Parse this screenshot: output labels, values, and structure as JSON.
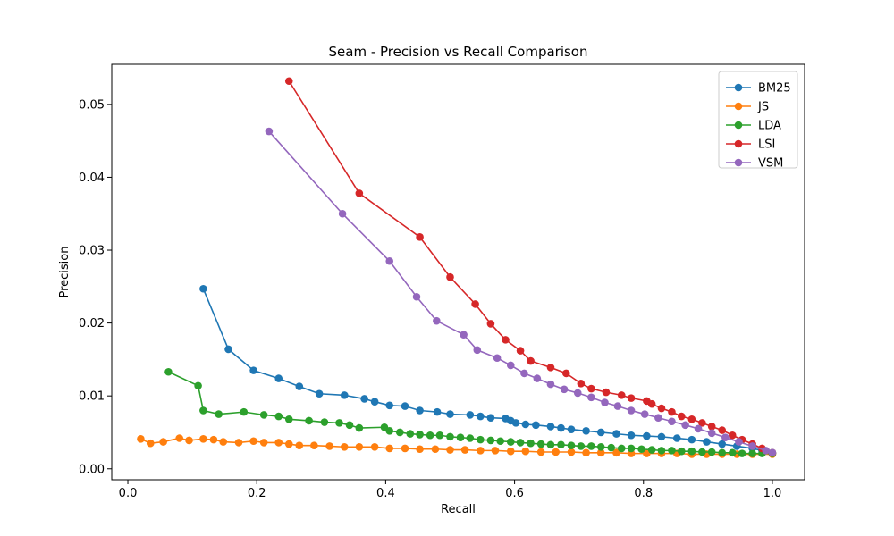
{
  "chart_data": {
    "type": "line",
    "title": "Seam - Precision vs Recall Comparison",
    "xlabel": "Recall",
    "ylabel": "Precision",
    "xlim": [
      -0.025,
      1.05
    ],
    "ylim": [
      -0.0015,
      0.0555
    ],
    "x_ticks": [
      0.0,
      0.2,
      0.4,
      0.6,
      0.8,
      1.0
    ],
    "x_tick_labels": [
      "0.0",
      "0.2",
      "0.4",
      "0.6",
      "0.8",
      "1.0"
    ],
    "y_ticks": [
      0.0,
      0.01,
      0.02,
      0.03,
      0.04,
      0.05
    ],
    "y_tick_labels": [
      "0.00",
      "0.01",
      "0.02",
      "0.03",
      "0.04",
      "0.05"
    ],
    "grid": false,
    "legend_position": "top-right",
    "series": [
      {
        "name": "BM25",
        "color": "#1f77b4",
        "points": [
          [
            0.117,
            0.0247
          ],
          [
            0.156,
            0.0164
          ],
          [
            0.195,
            0.0135
          ],
          [
            0.234,
            0.0124
          ],
          [
            0.266,
            0.0113
          ],
          [
            0.297,
            0.0103
          ],
          [
            0.336,
            0.0101
          ],
          [
            0.367,
            0.0096
          ],
          [
            0.383,
            0.0092
          ],
          [
            0.406,
            0.0087
          ],
          [
            0.43,
            0.0086
          ],
          [
            0.453,
            0.008
          ],
          [
            0.48,
            0.0078
          ],
          [
            0.5,
            0.0075
          ],
          [
            0.531,
            0.0074
          ],
          [
            0.547,
            0.0072
          ],
          [
            0.563,
            0.007
          ],
          [
            0.586,
            0.0069
          ],
          [
            0.594,
            0.0066
          ],
          [
            0.602,
            0.0063
          ],
          [
            0.617,
            0.0061
          ],
          [
            0.633,
            0.006
          ],
          [
            0.656,
            0.0058
          ],
          [
            0.672,
            0.0056
          ],
          [
            0.688,
            0.0054
          ],
          [
            0.711,
            0.0052
          ],
          [
            0.734,
            0.005
          ],
          [
            0.758,
            0.0048
          ],
          [
            0.781,
            0.0046
          ],
          [
            0.805,
            0.0045
          ],
          [
            0.828,
            0.0044
          ],
          [
            0.852,
            0.0042
          ],
          [
            0.875,
            0.004
          ],
          [
            0.898,
            0.0037
          ],
          [
            0.922,
            0.0034
          ],
          [
            0.945,
            0.0031
          ],
          [
            0.969,
            0.0028
          ],
          [
            0.984,
            0.0025
          ],
          [
            1.0,
            0.0022
          ]
        ]
      },
      {
        "name": "JS",
        "color": "#ff7f0e",
        "points": [
          [
            0.02,
            0.0041
          ],
          [
            0.035,
            0.0035
          ],
          [
            0.055,
            0.0037
          ],
          [
            0.08,
            0.0042
          ],
          [
            0.095,
            0.0039
          ],
          [
            0.117,
            0.0041
          ],
          [
            0.133,
            0.004
          ],
          [
            0.148,
            0.0037
          ],
          [
            0.172,
            0.0036
          ],
          [
            0.195,
            0.0038
          ],
          [
            0.211,
            0.0036
          ],
          [
            0.234,
            0.0036
          ],
          [
            0.25,
            0.0034
          ],
          [
            0.266,
            0.0032
          ],
          [
            0.289,
            0.0032
          ],
          [
            0.313,
            0.0031
          ],
          [
            0.336,
            0.003
          ],
          [
            0.359,
            0.003
          ],
          [
            0.383,
            0.003
          ],
          [
            0.406,
            0.0028
          ],
          [
            0.43,
            0.0028
          ],
          [
            0.453,
            0.0027
          ],
          [
            0.477,
            0.0027
          ],
          [
            0.5,
            0.0026
          ],
          [
            0.523,
            0.0026
          ],
          [
            0.547,
            0.0025
          ],
          [
            0.57,
            0.0025
          ],
          [
            0.594,
            0.0024
          ],
          [
            0.617,
            0.0024
          ],
          [
            0.641,
            0.0023
          ],
          [
            0.664,
            0.0023
          ],
          [
            0.688,
            0.0023
          ],
          [
            0.711,
            0.0022
          ],
          [
            0.734,
            0.0022
          ],
          [
            0.758,
            0.0022
          ],
          [
            0.781,
            0.0021
          ],
          [
            0.805,
            0.0021
          ],
          [
            0.828,
            0.0021
          ],
          [
            0.852,
            0.0021
          ],
          [
            0.875,
            0.002
          ],
          [
            0.898,
            0.002
          ],
          [
            0.922,
            0.002
          ],
          [
            0.945,
            0.002
          ],
          [
            0.969,
            0.002
          ],
          [
            1.0,
            0.002
          ]
        ]
      },
      {
        "name": "LDA",
        "color": "#2ca02c",
        "points": [
          [
            0.063,
            0.0133
          ],
          [
            0.109,
            0.0114
          ],
          [
            0.117,
            0.008
          ],
          [
            0.141,
            0.0075
          ],
          [
            0.18,
            0.0078
          ],
          [
            0.211,
            0.0074
          ],
          [
            0.234,
            0.0072
          ],
          [
            0.25,
            0.0068
          ],
          [
            0.281,
            0.0066
          ],
          [
            0.305,
            0.0064
          ],
          [
            0.328,
            0.0063
          ],
          [
            0.344,
            0.006
          ],
          [
            0.359,
            0.0056
          ],
          [
            0.398,
            0.0057
          ],
          [
            0.406,
            0.0052
          ],
          [
            0.422,
            0.005
          ],
          [
            0.438,
            0.0048
          ],
          [
            0.453,
            0.0047
          ],
          [
            0.469,
            0.0046
          ],
          [
            0.484,
            0.0046
          ],
          [
            0.5,
            0.0044
          ],
          [
            0.516,
            0.0043
          ],
          [
            0.531,
            0.0042
          ],
          [
            0.547,
            0.004
          ],
          [
            0.563,
            0.0039
          ],
          [
            0.578,
            0.0038
          ],
          [
            0.594,
            0.0037
          ],
          [
            0.609,
            0.0036
          ],
          [
            0.625,
            0.0035
          ],
          [
            0.641,
            0.0034
          ],
          [
            0.656,
            0.0033
          ],
          [
            0.672,
            0.0033
          ],
          [
            0.688,
            0.0032
          ],
          [
            0.703,
            0.0031
          ],
          [
            0.719,
            0.0031
          ],
          [
            0.734,
            0.003
          ],
          [
            0.75,
            0.0029
          ],
          [
            0.766,
            0.0028
          ],
          [
            0.781,
            0.0028
          ],
          [
            0.797,
            0.0027
          ],
          [
            0.813,
            0.0026
          ],
          [
            0.828,
            0.0025
          ],
          [
            0.844,
            0.0025
          ],
          [
            0.859,
            0.0024
          ],
          [
            0.875,
            0.0024
          ],
          [
            0.891,
            0.0023
          ],
          [
            0.906,
            0.0023
          ],
          [
            0.922,
            0.0022
          ],
          [
            0.938,
            0.0022
          ],
          [
            0.953,
            0.0021
          ],
          [
            0.969,
            0.0021
          ],
          [
            0.984,
            0.0021
          ],
          [
            1.0,
            0.0021
          ]
        ]
      },
      {
        "name": "LSI",
        "color": "#d62728",
        "points": [
          [
            0.25,
            0.0532
          ],
          [
            0.359,
            0.0378
          ],
          [
            0.453,
            0.0318
          ],
          [
            0.5,
            0.0263
          ],
          [
            0.539,
            0.0226
          ],
          [
            0.563,
            0.0199
          ],
          [
            0.586,
            0.0177
          ],
          [
            0.609,
            0.0162
          ],
          [
            0.625,
            0.0148
          ],
          [
            0.656,
            0.0139
          ],
          [
            0.68,
            0.0131
          ],
          [
            0.703,
            0.0117
          ],
          [
            0.719,
            0.011
          ],
          [
            0.742,
            0.0105
          ],
          [
            0.766,
            0.0101
          ],
          [
            0.781,
            0.0097
          ],
          [
            0.805,
            0.0093
          ],
          [
            0.813,
            0.0089
          ],
          [
            0.828,
            0.0083
          ],
          [
            0.844,
            0.0078
          ],
          [
            0.859,
            0.0072
          ],
          [
            0.875,
            0.0068
          ],
          [
            0.891,
            0.0063
          ],
          [
            0.906,
            0.0058
          ],
          [
            0.922,
            0.0053
          ],
          [
            0.938,
            0.0046
          ],
          [
            0.953,
            0.004
          ],
          [
            0.969,
            0.0034
          ],
          [
            0.984,
            0.0028
          ],
          [
            1.0,
            0.0022
          ]
        ]
      },
      {
        "name": "VSM",
        "color": "#9467bd",
        "points": [
          [
            0.219,
            0.0463
          ],
          [
            0.333,
            0.035
          ],
          [
            0.406,
            0.0285
          ],
          [
            0.448,
            0.0236
          ],
          [
            0.479,
            0.0203
          ],
          [
            0.521,
            0.0184
          ],
          [
            0.542,
            0.0163
          ],
          [
            0.573,
            0.0152
          ],
          [
            0.594,
            0.0142
          ],
          [
            0.615,
            0.0131
          ],
          [
            0.635,
            0.0124
          ],
          [
            0.656,
            0.0116
          ],
          [
            0.677,
            0.0109
          ],
          [
            0.698,
            0.0104
          ],
          [
            0.719,
            0.0098
          ],
          [
            0.74,
            0.0091
          ],
          [
            0.76,
            0.0086
          ],
          [
            0.781,
            0.008
          ],
          [
            0.802,
            0.0075
          ],
          [
            0.823,
            0.007
          ],
          [
            0.844,
            0.0065
          ],
          [
            0.865,
            0.006
          ],
          [
            0.885,
            0.0055
          ],
          [
            0.906,
            0.0049
          ],
          [
            0.927,
            0.0043
          ],
          [
            0.948,
            0.0037
          ],
          [
            0.969,
            0.0031
          ],
          [
            0.99,
            0.0025
          ],
          [
            1.0,
            0.0022
          ]
        ]
      }
    ]
  }
}
